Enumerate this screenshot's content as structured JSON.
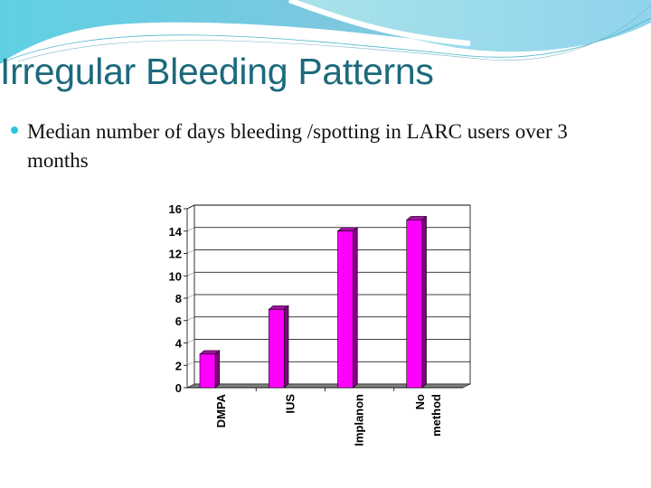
{
  "slide": {
    "title": "Irregular Bleeding Patterns",
    "bullet": "Median number of days bleeding /spotting in LARC users over 3 months"
  },
  "colors": {
    "title": "#1c6a7c",
    "bullet": "#2cc6d8",
    "bar_front": "#ff00ff",
    "bar_side": "#800080",
    "floor": "#808080"
  },
  "chart_data": {
    "type": "bar",
    "title": "",
    "xlabel": "",
    "ylabel": "",
    "categories": [
      "DMPA",
      "IUS",
      "Implanon",
      "No method"
    ],
    "values": [
      3,
      7,
      14,
      15
    ],
    "ylim": [
      0,
      16
    ],
    "yticks": [
      0,
      2,
      4,
      6,
      8,
      10,
      12,
      14,
      16
    ],
    "grid": true,
    "legend": "none",
    "style": "3d-column"
  }
}
